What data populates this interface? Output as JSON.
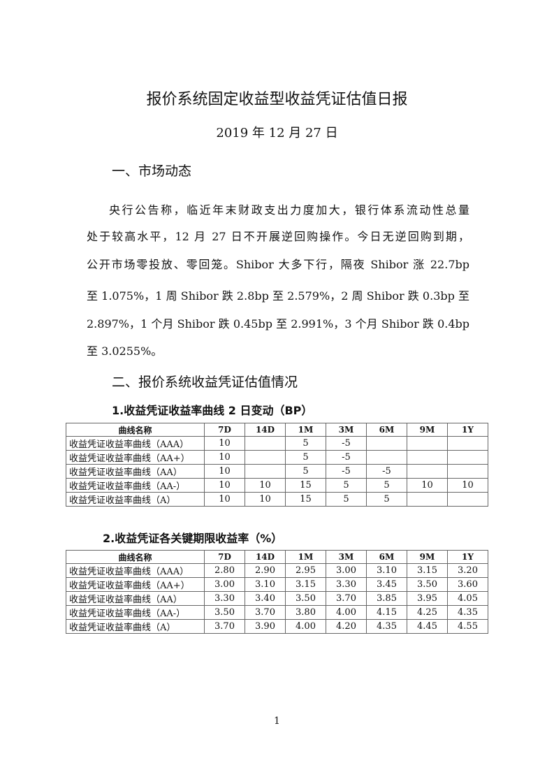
{
  "title": "报价系统固定收益型收益凭证估值日报",
  "date": "2019 年 12 月 27 日",
  "section1": {
    "heading": "一、市场动态",
    "lines": [
      "央行公告称，临近年末财政支出力度加大，银行体系流动性总量",
      "处于较高水平，12 月 27 日不开展逆回购操作。今日无逆回购到期，",
      "公开市场零投放、零回笼。Shibor 大多下行，隔夜 Shibor 涨 22.7bp",
      "至 1.075%，1 周 Shibor 跌 2.8bp 至 2.579%，2 周 Shibor 跌 0.3bp 至",
      "2.897%，1 个月 Shibor 跌 0.45bp 至 2.991%，3 个月 Shibor 跌 0.4bp",
      "至 3.0255%。"
    ]
  },
  "section2": {
    "heading": "二、报价系统收益凭证估值情况",
    "table1": {
      "caption": "1.收益凭证收益率曲线 2 日变动（BP）",
      "headers": [
        "曲线名称",
        "7D",
        "14D",
        "1M",
        "3M",
        "6M",
        "9M",
        "1Y"
      ],
      "rows": [
        [
          "收益凭证收益率曲线（AAA）",
          "10",
          "",
          "5",
          "-5",
          "",
          "",
          ""
        ],
        [
          "收益凭证收益率曲线（AA+）",
          "10",
          "",
          "5",
          "-5",
          "",
          "",
          ""
        ],
        [
          "收益凭证收益率曲线（AA）",
          "10",
          "",
          "5",
          "-5",
          "-5",
          "",
          ""
        ],
        [
          "收益凭证收益率曲线（AA-）",
          "10",
          "10",
          "15",
          "5",
          "5",
          "10",
          "10"
        ],
        [
          "收益凭证收益率曲线（A）",
          "10",
          "10",
          "15",
          "5",
          "5",
          "",
          ""
        ]
      ]
    },
    "table2": {
      "caption": "2.收益凭证各关键期限收益率（%）",
      "headers": [
        "曲线名称",
        "7D",
        "14D",
        "1M",
        "3M",
        "6M",
        "9M",
        "1Y"
      ],
      "rows": [
        [
          "收益凭证收益率曲线（AAA）",
          "2.80",
          "2.90",
          "2.95",
          "3.00",
          "3.10",
          "3.15",
          "3.20"
        ],
        [
          "收益凭证收益率曲线（AA+）",
          "3.00",
          "3.10",
          "3.15",
          "3.30",
          "3.45",
          "3.50",
          "3.60"
        ],
        [
          "收益凭证收益率曲线（AA）",
          "3.30",
          "3.40",
          "3.50",
          "3.70",
          "3.85",
          "3.95",
          "4.05"
        ],
        [
          "收益凭证收益率曲线（AA-）",
          "3.50",
          "3.70",
          "3.80",
          "4.00",
          "4.15",
          "4.25",
          "4.35"
        ],
        [
          "收益凭证收益率曲线（A）",
          "3.70",
          "3.90",
          "4.00",
          "4.20",
          "4.35",
          "4.45",
          "4.55"
        ]
      ]
    }
  },
  "page_number": "1"
}
